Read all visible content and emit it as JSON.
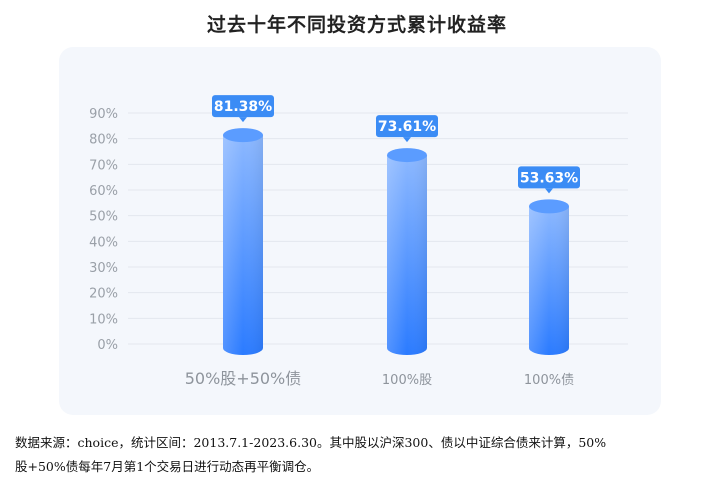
{
  "chart_data": {
    "type": "bar",
    "title": "过去十年不同投资方式累计收益率",
    "categories": [
      "50%股+50%债",
      "100%股",
      "100%债"
    ],
    "values": [
      81.38,
      73.61,
      53.63
    ],
    "value_labels": [
      "81.38%",
      "73.61%",
      "53.63%"
    ],
    "ylim": [
      0,
      90
    ],
    "yticks": [
      0,
      10,
      20,
      30,
      40,
      50,
      60,
      70,
      80,
      90
    ],
    "ytick_labels": [
      "0%",
      "10%",
      "20%",
      "30%",
      "40%",
      "50%",
      "60%",
      "70%",
      "80%",
      "90%"
    ],
    "grid": true,
    "bar_color_top": "#8cb8ff",
    "bar_color_bottom": "#2b7bff",
    "label_bg": "#3b8cf5"
  },
  "footnote": {
    "line1": "数据来源：choice，统计区间：2013.7.1-2023.6.30。其中股以沪深300、债以中证综合债来计算，50%",
    "line2": "股+50%债每年7月第1个交易日进行动态再平衡调仓。"
  }
}
